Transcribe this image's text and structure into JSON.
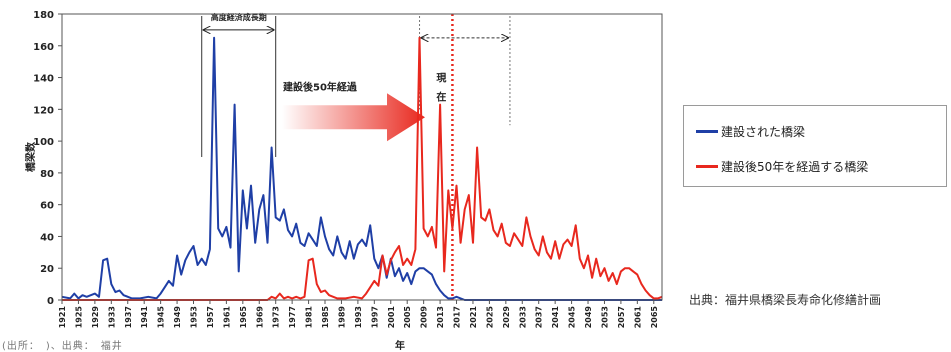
{
  "chart_data": {
    "type": "line",
    "xlabel": "年",
    "ylabel": "橋梁数",
    "ylim": [
      0,
      180
    ],
    "yticks": [
      0,
      20,
      40,
      60,
      80,
      100,
      120,
      140,
      160,
      180
    ],
    "xlim": [
      1921,
      2067
    ],
    "xticks": [
      1921,
      1925,
      1929,
      1933,
      1937,
      1941,
      1945,
      1949,
      1953,
      1957,
      1961,
      1965,
      1969,
      1973,
      1977,
      1981,
      1985,
      1989,
      1993,
      1997,
      2001,
      2005,
      2009,
      2013,
      2017,
      2021,
      2025,
      2029,
      2033,
      2037,
      2041,
      2045,
      2049,
      2053,
      2057,
      2061,
      2065
    ],
    "grid": false,
    "legend_position": "right",
    "series": [
      {
        "name": "建設された橋梁",
        "color": "#1f3fa6",
        "points": [
          [
            1921,
            2
          ],
          [
            1923,
            1
          ],
          [
            1924,
            4
          ],
          [
            1925,
            1
          ],
          [
            1926,
            3
          ],
          [
            1927,
            2
          ],
          [
            1929,
            4
          ],
          [
            1930,
            2
          ],
          [
            1931,
            25
          ],
          [
            1932,
            26
          ],
          [
            1933,
            10
          ],
          [
            1934,
            5
          ],
          [
            1935,
            6
          ],
          [
            1936,
            3
          ],
          [
            1937,
            2
          ],
          [
            1938,
            1
          ],
          [
            1940,
            1
          ],
          [
            1942,
            2
          ],
          [
            1944,
            1
          ],
          [
            1945,
            4
          ],
          [
            1946,
            8
          ],
          [
            1947,
            12
          ],
          [
            1948,
            9
          ],
          [
            1949,
            28
          ],
          [
            1950,
            16
          ],
          [
            1951,
            25
          ],
          [
            1952,
            30
          ],
          [
            1953,
            34
          ],
          [
            1954,
            22
          ],
          [
            1955,
            26
          ],
          [
            1956,
            22
          ],
          [
            1957,
            32
          ],
          [
            1958,
            165
          ],
          [
            1959,
            45
          ],
          [
            1960,
            40
          ],
          [
            1961,
            46
          ],
          [
            1962,
            33
          ],
          [
            1963,
            123
          ],
          [
            1964,
            18
          ],
          [
            1965,
            69
          ],
          [
            1966,
            45
          ],
          [
            1967,
            72
          ],
          [
            1968,
            36
          ],
          [
            1969,
            57
          ],
          [
            1970,
            66
          ],
          [
            1971,
            36
          ],
          [
            1972,
            96
          ],
          [
            1973,
            52
          ],
          [
            1974,
            50
          ],
          [
            1975,
            57
          ],
          [
            1976,
            44
          ],
          [
            1977,
            40
          ],
          [
            1978,
            48
          ],
          [
            1979,
            36
          ],
          [
            1980,
            34
          ],
          [
            1981,
            42
          ],
          [
            1982,
            38
          ],
          [
            1983,
            34
          ],
          [
            1984,
            52
          ],
          [
            1985,
            40
          ],
          [
            1986,
            32
          ],
          [
            1987,
            28
          ],
          [
            1988,
            40
          ],
          [
            1989,
            30
          ],
          [
            1990,
            26
          ],
          [
            1991,
            37
          ],
          [
            1992,
            26
          ],
          [
            1993,
            35
          ],
          [
            1994,
            38
          ],
          [
            1995,
            34
          ],
          [
            1996,
            47
          ],
          [
            1997,
            26
          ],
          [
            1998,
            20
          ],
          [
            1999,
            28
          ],
          [
            2000,
            14
          ],
          [
            2001,
            26
          ],
          [
            2002,
            15
          ],
          [
            2003,
            20
          ],
          [
            2004,
            12
          ],
          [
            2005,
            17
          ],
          [
            2006,
            10
          ],
          [
            2007,
            18
          ],
          [
            2008,
            20
          ],
          [
            2009,
            20
          ],
          [
            2010,
            18
          ],
          [
            2011,
            16
          ],
          [
            2012,
            10
          ],
          [
            2013,
            6
          ],
          [
            2014,
            3
          ],
          [
            2015,
            1
          ],
          [
            2016,
            1
          ],
          [
            2017,
            2
          ],
          [
            2018,
            1
          ],
          [
            2019,
            0
          ],
          [
            2067,
            0
          ]
        ]
      },
      {
        "name": "建設後50年を経過する橋梁",
        "color": "#e8281e",
        "points": [
          [
            1921,
            0
          ],
          [
            1971,
            0
          ],
          [
            1972,
            2
          ],
          [
            1973,
            1
          ],
          [
            1974,
            4
          ],
          [
            1975,
            1
          ],
          [
            1976,
            2
          ],
          [
            1977,
            1
          ],
          [
            1978,
            2
          ],
          [
            1979,
            1
          ],
          [
            1980,
            2
          ],
          [
            1981,
            25
          ],
          [
            1982,
            26
          ],
          [
            1983,
            10
          ],
          [
            1984,
            5
          ],
          [
            1985,
            6
          ],
          [
            1986,
            3
          ],
          [
            1987,
            2
          ],
          [
            1988,
            1
          ],
          [
            1990,
            1
          ],
          [
            1992,
            2
          ],
          [
            1994,
            1
          ],
          [
            1995,
            4
          ],
          [
            1996,
            8
          ],
          [
            1997,
            12
          ],
          [
            1998,
            9
          ],
          [
            1999,
            28
          ],
          [
            2000,
            16
          ],
          [
            2001,
            25
          ],
          [
            2002,
            30
          ],
          [
            2003,
            34
          ],
          [
            2004,
            22
          ],
          [
            2005,
            26
          ],
          [
            2006,
            22
          ],
          [
            2007,
            32
          ],
          [
            2008,
            165
          ],
          [
            2009,
            45
          ],
          [
            2010,
            40
          ],
          [
            2011,
            46
          ],
          [
            2012,
            33
          ],
          [
            2013,
            123
          ],
          [
            2014,
            18
          ],
          [
            2015,
            69
          ],
          [
            2016,
            45
          ],
          [
            2017,
            72
          ],
          [
            2018,
            36
          ],
          [
            2019,
            57
          ],
          [
            2020,
            66
          ],
          [
            2021,
            36
          ],
          [
            2022,
            96
          ],
          [
            2023,
            52
          ],
          [
            2024,
            50
          ],
          [
            2025,
            57
          ],
          [
            2026,
            44
          ],
          [
            2027,
            40
          ],
          [
            2028,
            48
          ],
          [
            2029,
            36
          ],
          [
            2030,
            34
          ],
          [
            2031,
            42
          ],
          [
            2032,
            38
          ],
          [
            2033,
            34
          ],
          [
            2034,
            52
          ],
          [
            2035,
            40
          ],
          [
            2036,
            32
          ],
          [
            2037,
            28
          ],
          [
            2038,
            40
          ],
          [
            2039,
            30
          ],
          [
            2040,
            26
          ],
          [
            2041,
            37
          ],
          [
            2042,
            26
          ],
          [
            2043,
            35
          ],
          [
            2044,
            38
          ],
          [
            2045,
            34
          ],
          [
            2046,
            47
          ],
          [
            2047,
            26
          ],
          [
            2048,
            20
          ],
          [
            2049,
            28
          ],
          [
            2050,
            14
          ],
          [
            2051,
            26
          ],
          [
            2052,
            15
          ],
          [
            2053,
            20
          ],
          [
            2054,
            12
          ],
          [
            2055,
            17
          ],
          [
            2056,
            10
          ],
          [
            2057,
            18
          ],
          [
            2058,
            20
          ],
          [
            2059,
            20
          ],
          [
            2060,
            18
          ],
          [
            2061,
            16
          ],
          [
            2062,
            10
          ],
          [
            2063,
            6
          ],
          [
            2064,
            3
          ],
          [
            2065,
            1
          ],
          [
            2066,
            1
          ],
          [
            2067,
            2
          ]
        ]
      }
    ],
    "annotations": {
      "period_label": "高度経済成長期",
      "period_range": [
        1955,
        1973
      ],
      "arrow_label": "建設後50年経過",
      "current_label_1": "現",
      "current_label_2": "在",
      "current_year": 2016,
      "current_range": [
        2008,
        2030
      ]
    }
  },
  "source_text": "出典：福井県橋梁長寿命化修繕計画",
  "clipped_caption": "(出所：　)、出典：　福井"
}
